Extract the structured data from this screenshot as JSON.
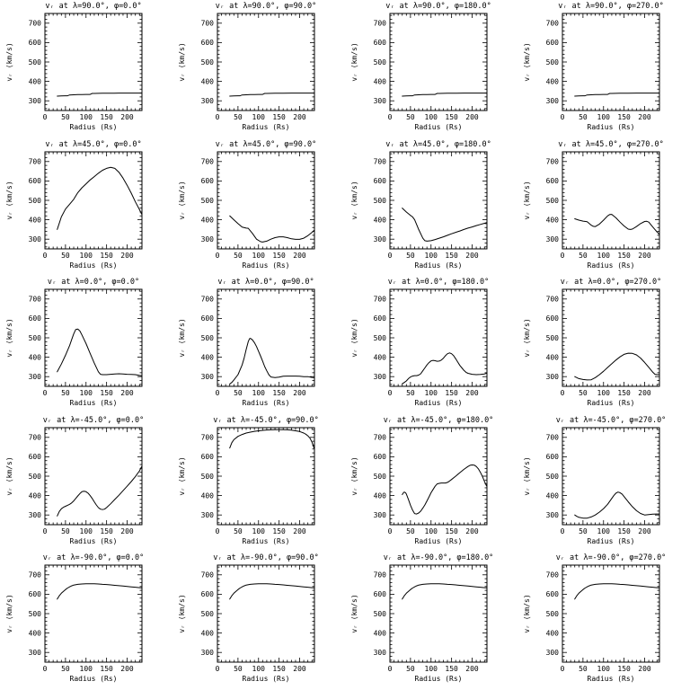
{
  "figure": {
    "description": "Grid of 20 line plots of radial solar wind speed vs radius at 5 latitudes and 4 longitudes",
    "rows_lambda": [
      90.0,
      45.0,
      0.0,
      -45.0,
      -90.0
    ],
    "cols_phi": [
      0.0,
      90.0,
      180.0,
      270.0
    ],
    "background": "#ffffff",
    "line_color": "#000000"
  },
  "chart_common": {
    "type": "line",
    "xlabel": "Radius (Rs)",
    "ylabel": "vᵣ (km/s)",
    "xlim": [
      0,
      236
    ],
    "ylim": [
      250,
      750
    ],
    "xticks": [
      0,
      50,
      100,
      150,
      200
    ],
    "yticks": [
      300,
      400,
      500,
      600,
      700
    ],
    "x_minor_step": 10,
    "y_minor_step": 20,
    "grid": "off",
    "legend": "none"
  },
  "chart_data": [
    {
      "title": "vᵣ at λ=90.0°, φ=0.0°",
      "lambda": 90.0,
      "phi": 0.0,
      "x": [
        30,
        40,
        50,
        55,
        60,
        70,
        80,
        90,
        100,
        110,
        115,
        120,
        140,
        160,
        180,
        200,
        220,
        235
      ],
      "y": [
        324,
        325,
        326,
        326,
        330,
        331,
        332,
        332,
        333,
        333,
        338,
        338,
        339,
        339,
        340,
        340,
        340,
        340
      ]
    },
    {
      "title": "vᵣ at λ=90.0°, φ=90.0°",
      "lambda": 90.0,
      "phi": 90.0,
      "x": [
        30,
        40,
        50,
        55,
        60,
        70,
        80,
        90,
        100,
        110,
        115,
        120,
        140,
        160,
        180,
        200,
        220,
        235
      ],
      "y": [
        324,
        325,
        326,
        326,
        330,
        331,
        332,
        332,
        333,
        333,
        338,
        338,
        339,
        339,
        340,
        340,
        340,
        340
      ]
    },
    {
      "title": "vᵣ at λ=90.0°, φ=180.0°",
      "lambda": 90.0,
      "phi": 180.0,
      "x": [
        30,
        40,
        50,
        55,
        60,
        70,
        80,
        90,
        100,
        110,
        115,
        120,
        140,
        160,
        180,
        200,
        220,
        235
      ],
      "y": [
        324,
        325,
        326,
        326,
        330,
        331,
        332,
        332,
        333,
        333,
        338,
        338,
        339,
        339,
        340,
        340,
        340,
        340
      ]
    },
    {
      "title": "vᵣ at λ=90.0°, φ=270.0°",
      "lambda": 90.0,
      "phi": 270.0,
      "x": [
        30,
        40,
        50,
        55,
        60,
        70,
        80,
        90,
        100,
        110,
        115,
        120,
        140,
        160,
        180,
        200,
        220,
        235
      ],
      "y": [
        324,
        325,
        326,
        326,
        330,
        331,
        332,
        332,
        333,
        333,
        338,
        338,
        339,
        339,
        340,
        340,
        340,
        340
      ]
    },
    {
      "title": "vᵣ at λ=45.0°, φ=0.0°",
      "lambda": 45.0,
      "phi": 0.0,
      "x": [
        30,
        40,
        50,
        60,
        70,
        80,
        90,
        100,
        110,
        120,
        130,
        140,
        150,
        160,
        170,
        180,
        190,
        200,
        210,
        220,
        230,
        235
      ],
      "y": [
        350,
        415,
        455,
        480,
        505,
        540,
        565,
        585,
        605,
        622,
        640,
        655,
        665,
        670,
        665,
        645,
        615,
        578,
        537,
        492,
        452,
        430
      ]
    },
    {
      "title": "vᵣ at λ=45.0°, φ=90.0°",
      "lambda": 45.0,
      "phi": 90.0,
      "x": [
        30,
        40,
        50,
        60,
        70,
        75,
        85,
        95,
        105,
        110,
        120,
        130,
        140,
        150,
        160,
        170,
        180,
        190,
        200,
        210,
        220,
        230,
        235
      ],
      "y": [
        420,
        400,
        380,
        362,
        357,
        356,
        330,
        300,
        287,
        285,
        290,
        300,
        308,
        312,
        312,
        308,
        302,
        299,
        299,
        305,
        318,
        335,
        345
      ]
    },
    {
      "title": "vᵣ at λ=45.0°, φ=180.0°",
      "lambda": 45.0,
      "phi": 180.0,
      "x": [
        30,
        40,
        50,
        55,
        60,
        70,
        80,
        85,
        90,
        100,
        110,
        120,
        130,
        140,
        150,
        160,
        170,
        180,
        190,
        200,
        210,
        220,
        230,
        235
      ],
      "y": [
        460,
        440,
        422,
        415,
        400,
        350,
        305,
        292,
        290,
        292,
        298,
        305,
        312,
        320,
        328,
        335,
        342,
        350,
        357,
        363,
        370,
        376,
        382,
        385
      ]
    },
    {
      "title": "vᵣ at λ=45.0°, φ=270.0°",
      "lambda": 45.0,
      "phi": 270.0,
      "x": [
        30,
        40,
        50,
        60,
        70,
        75,
        80,
        90,
        100,
        110,
        115,
        120,
        130,
        140,
        150,
        160,
        165,
        170,
        180,
        190,
        200,
        205,
        210,
        220,
        230,
        235
      ],
      "y": [
        405,
        398,
        393,
        390,
        372,
        366,
        365,
        378,
        398,
        420,
        427,
        428,
        410,
        388,
        368,
        352,
        350,
        352,
        365,
        380,
        391,
        392,
        388,
        362,
        337,
        327
      ]
    },
    {
      "title": "vᵣ at λ=0.0°, φ=0.0°",
      "lambda": 0.0,
      "phi": 0.0,
      "x": [
        30,
        40,
        50,
        60,
        65,
        70,
        75,
        80,
        85,
        90,
        100,
        110,
        120,
        130,
        135,
        140,
        150,
        160,
        170,
        180,
        190,
        200,
        210,
        220,
        230,
        235
      ],
      "y": [
        325,
        365,
        410,
        460,
        490,
        520,
        543,
        545,
        535,
        515,
        470,
        420,
        370,
        325,
        312,
        310,
        310,
        312,
        314,
        315,
        314,
        312,
        311,
        310,
        306,
        305
      ]
    },
    {
      "title": "vᵣ at λ=0.0°, φ=90.0°",
      "lambda": 0.0,
      "phi": 90.0,
      "x": [
        30,
        35,
        40,
        50,
        60,
        65,
        70,
        75,
        78,
        80,
        85,
        90,
        95,
        100,
        105,
        110,
        115,
        120,
        125,
        130,
        140,
        150,
        160,
        170,
        180,
        190,
        200,
        210,
        220,
        230,
        235
      ],
      "y": [
        262,
        270,
        283,
        310,
        360,
        395,
        440,
        480,
        495,
        497,
        490,
        475,
        455,
        430,
        405,
        380,
        352,
        330,
        310,
        298,
        295,
        297,
        302,
        303,
        303,
        303,
        302,
        300,
        300,
        296,
        295
      ]
    },
    {
      "title": "vᵣ at λ=0.0°, φ=180.0°",
      "lambda": 0.0,
      "phi": 180.0,
      "x": [
        30,
        35,
        40,
        45,
        50,
        55,
        60,
        65,
        70,
        75,
        80,
        85,
        90,
        95,
        100,
        105,
        110,
        115,
        120,
        125,
        130,
        135,
        140,
        145,
        150,
        155,
        160,
        165,
        170,
        175,
        180,
        185,
        190,
        200,
        210,
        220,
        230,
        235
      ],
      "y": [
        263,
        270,
        278,
        290,
        298,
        303,
        305,
        305,
        308,
        315,
        330,
        345,
        360,
        372,
        381,
        384,
        382,
        379,
        380,
        385,
        395,
        408,
        418,
        422,
        418,
        408,
        392,
        375,
        358,
        345,
        332,
        322,
        317,
        312,
        310,
        311,
        314,
        317
      ]
    },
    {
      "title": "vᵣ at λ=0.0°, φ=270.0°",
      "lambda": 0.0,
      "phi": 270.0,
      "x": [
        30,
        40,
        50,
        60,
        70,
        80,
        90,
        100,
        110,
        120,
        130,
        140,
        150,
        160,
        170,
        180,
        190,
        200,
        210,
        220,
        225,
        230,
        235
      ],
      "y": [
        300,
        290,
        285,
        283,
        284,
        295,
        310,
        328,
        347,
        366,
        385,
        402,
        415,
        421,
        420,
        412,
        396,
        373,
        348,
        322,
        312,
        310,
        310
      ]
    },
    {
      "title": "vᵣ at λ=-45.0°, φ=0.0°",
      "lambda": -45.0,
      "phi": 0.0,
      "x": [
        30,
        35,
        40,
        45,
        50,
        55,
        60,
        65,
        70,
        75,
        80,
        85,
        90,
        95,
        100,
        105,
        110,
        115,
        120,
        125,
        130,
        135,
        140,
        145,
        150,
        160,
        170,
        180,
        190,
        200,
        210,
        220,
        230,
        235
      ],
      "y": [
        295,
        318,
        332,
        340,
        345,
        350,
        355,
        362,
        372,
        385,
        398,
        410,
        420,
        422,
        420,
        412,
        400,
        385,
        368,
        352,
        338,
        330,
        328,
        330,
        338,
        358,
        380,
        402,
        425,
        448,
        472,
        498,
        528,
        548
      ]
    },
    {
      "title": "vᵣ at λ=-45.0°, φ=90.0°",
      "lambda": -45.0,
      "phi": 90.0,
      "x": [
        30,
        35,
        40,
        50,
        60,
        70,
        80,
        90,
        100,
        110,
        120,
        130,
        140,
        150,
        160,
        170,
        180,
        190,
        200,
        210,
        215,
        220,
        225,
        230,
        235
      ],
      "y": [
        645,
        672,
        688,
        705,
        715,
        722,
        727,
        731,
        734,
        736,
        738,
        739,
        740,
        740,
        740,
        739,
        737,
        734,
        730,
        722,
        716,
        708,
        696,
        675,
        645
      ]
    },
    {
      "title": "vᵣ at λ=-45.0°, φ=180.0°",
      "lambda": -45.0,
      "phi": 180.0,
      "x": [
        30,
        33,
        35,
        38,
        40,
        45,
        50,
        55,
        60,
        65,
        70,
        75,
        80,
        85,
        90,
        95,
        100,
        105,
        110,
        115,
        120,
        125,
        130,
        135,
        140,
        145,
        150,
        160,
        170,
        180,
        190,
        195,
        200,
        205,
        210,
        215,
        220,
        225,
        230,
        235
      ],
      "y": [
        405,
        415,
        418,
        415,
        408,
        380,
        350,
        325,
        307,
        305,
        310,
        320,
        335,
        352,
        372,
        393,
        415,
        432,
        448,
        460,
        463,
        465,
        465,
        465,
        468,
        475,
        483,
        500,
        518,
        535,
        550,
        556,
        558,
        557,
        550,
        538,
        520,
        498,
        472,
        450
      ]
    },
    {
      "title": "vᵣ at λ=-45.0°, φ=270.0°",
      "lambda": -45.0,
      "phi": 270.0,
      "x": [
        30,
        35,
        40,
        50,
        60,
        70,
        80,
        90,
        100,
        110,
        120,
        125,
        130,
        135,
        140,
        145,
        150,
        160,
        170,
        180,
        190,
        200,
        210,
        220,
        230,
        235
      ],
      "y": [
        300,
        293,
        288,
        284,
        284,
        290,
        300,
        315,
        333,
        355,
        385,
        400,
        412,
        418,
        415,
        408,
        395,
        368,
        343,
        322,
        308,
        300,
        302,
        304,
        305,
        305
      ]
    },
    {
      "title": "vᵣ at λ=-90.0°, φ=0.0°",
      "lambda": -90.0,
      "phi": 0.0,
      "x": [
        30,
        35,
        40,
        45,
        50,
        55,
        60,
        65,
        70,
        80,
        90,
        100,
        110,
        120,
        130,
        140,
        150,
        160,
        170,
        180,
        190,
        200,
        210,
        220,
        230,
        235
      ],
      "y": [
        575,
        592,
        605,
        615,
        624,
        632,
        638,
        643,
        647,
        651,
        653,
        654,
        654,
        654,
        653,
        651,
        650,
        648,
        646,
        644,
        642,
        640,
        638,
        636,
        634,
        633
      ]
    },
    {
      "title": "vᵣ at λ=-90.0°, φ=90.0°",
      "lambda": -90.0,
      "phi": 90.0,
      "x": [
        30,
        35,
        40,
        45,
        50,
        55,
        60,
        65,
        70,
        80,
        90,
        100,
        110,
        120,
        130,
        140,
        150,
        160,
        170,
        180,
        190,
        200,
        210,
        220,
        230,
        235
      ],
      "y": [
        575,
        592,
        605,
        615,
        624,
        632,
        638,
        643,
        647,
        651,
        653,
        654,
        654,
        654,
        653,
        651,
        650,
        648,
        646,
        644,
        642,
        640,
        638,
        636,
        634,
        633
      ]
    },
    {
      "title": "vᵣ at λ=-90.0°, φ=180.0°",
      "lambda": -90.0,
      "phi": 180.0,
      "x": [
        30,
        35,
        40,
        45,
        50,
        55,
        60,
        65,
        70,
        80,
        90,
        100,
        110,
        120,
        130,
        140,
        150,
        160,
        170,
        180,
        190,
        200,
        210,
        220,
        230,
        235
      ],
      "y": [
        575,
        592,
        605,
        615,
        624,
        632,
        638,
        643,
        647,
        651,
        653,
        654,
        654,
        654,
        653,
        651,
        650,
        648,
        646,
        644,
        642,
        640,
        638,
        636,
        634,
        633
      ]
    },
    {
      "title": "vᵣ at λ=-90.0°, φ=270.0°",
      "lambda": -90.0,
      "phi": 270.0,
      "x": [
        30,
        35,
        40,
        45,
        50,
        55,
        60,
        65,
        70,
        80,
        90,
        100,
        110,
        120,
        130,
        140,
        150,
        160,
        170,
        180,
        190,
        200,
        210,
        220,
        230,
        235
      ],
      "y": [
        575,
        592,
        605,
        615,
        624,
        632,
        638,
        643,
        647,
        651,
        653,
        654,
        654,
        654,
        653,
        651,
        650,
        648,
        646,
        644,
        642,
        640,
        638,
        636,
        634,
        633
      ]
    }
  ]
}
